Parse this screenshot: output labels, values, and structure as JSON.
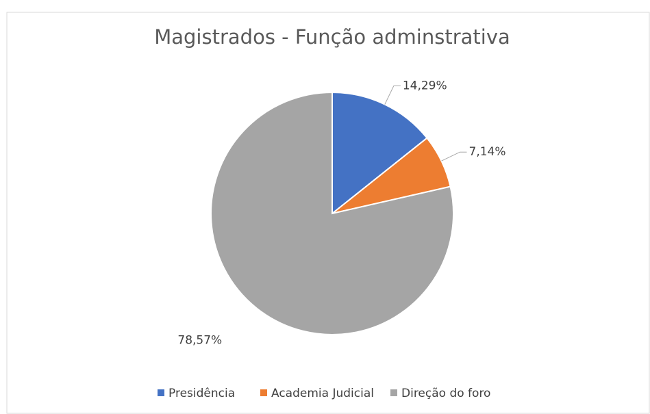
{
  "chart_data": {
    "type": "pie",
    "title": "Magistrados - Função adminstrativa",
    "categories": [
      "Presidência",
      "Academia Judicial",
      "Direção do foro"
    ],
    "values": [
      14.29,
      7.14,
      78.57
    ],
    "value_labels": [
      "14,29%",
      "7,14%",
      "78,57%"
    ],
    "colors": [
      "#4472c4",
      "#ed7d31",
      "#a5a5a5"
    ],
    "legend": "bottom"
  }
}
